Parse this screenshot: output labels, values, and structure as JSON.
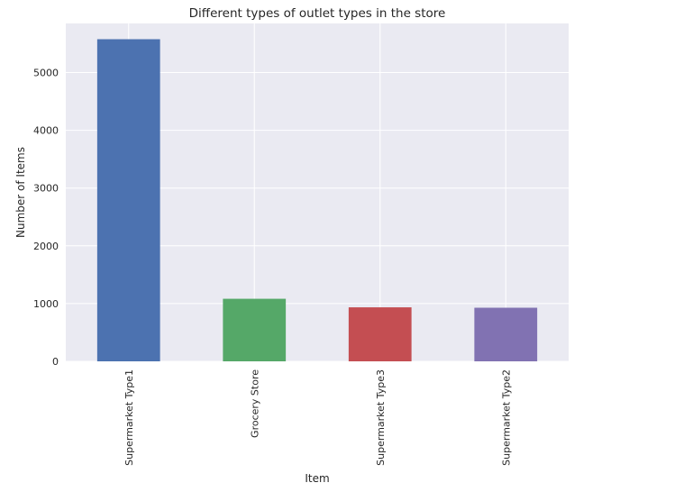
{
  "chart_data": {
    "type": "bar",
    "title": "Different types of outlet types in the store",
    "xlabel": "Item",
    "ylabel": "Number of Items",
    "categories": [
      "Supermarket Type1",
      "Grocery Store",
      "Supermarket Type3",
      "Supermarket Type2"
    ],
    "values": [
      5577,
      1083,
      935,
      928
    ],
    "colors": [
      "#4c72b0",
      "#55a868",
      "#c44e52",
      "#8172b2"
    ],
    "ylim": [
      0,
      5850
    ],
    "yticks": [
      0,
      1000,
      2000,
      3000,
      4000,
      5000
    ],
    "grid": true,
    "background": "#eaeaf2",
    "legend": "none"
  }
}
